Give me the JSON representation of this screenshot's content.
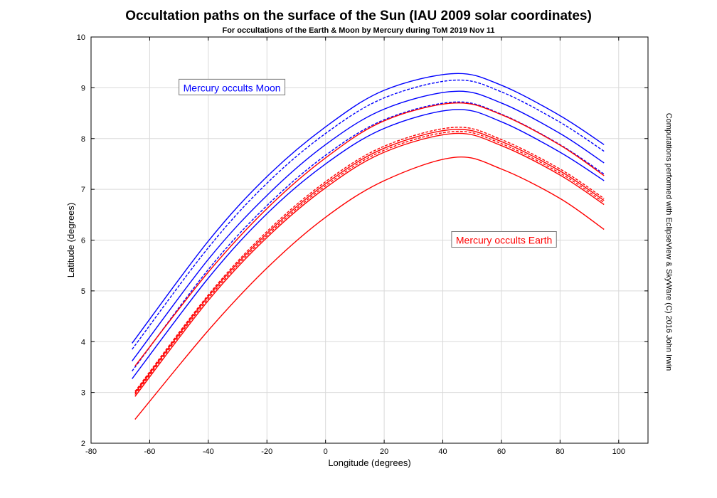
{
  "chart_data": {
    "type": "line",
    "title": "Occultation paths on the surface of the Sun (IAU 2009 solar coordinates)",
    "subtitle": "For occultations of the Earth & Moon by Mercury during ToM 2019 Nov 11",
    "xlabel": "Longitude (degrees)",
    "ylabel": "Latitude (degrees)",
    "xlim": [
      -80,
      110
    ],
    "ylim": [
      2,
      10
    ],
    "xticks": [
      -80,
      -60,
      -40,
      -20,
      0,
      20,
      40,
      60,
      80,
      100
    ],
    "yticks": [
      2,
      3,
      4,
      5,
      6,
      7,
      8,
      9,
      10
    ],
    "grid": true,
    "annotations": [
      {
        "text": "Mercury occults Moon",
        "x": -50,
        "y": 9.0,
        "color": "#0000ff"
      },
      {
        "text": "Mercury occults Earth",
        "x": 43,
        "y": 6.0,
        "color": "#ff0000"
      }
    ],
    "side_note": "Computations performed with EclipseView & SkyWare (C) 2016 John Irwin",
    "series": [
      {
        "group": "moon",
        "color": "#0000ff",
        "dash": false,
        "x": [
          -66,
          -40,
          -20,
          0,
          20,
          44,
          60,
          80,
          95
        ],
        "y": [
          3.97,
          5.98,
          7.25,
          8.23,
          8.95,
          9.28,
          9.05,
          8.45,
          7.88
        ]
      },
      {
        "group": "moon",
        "color": "#0000ff",
        "dash": true,
        "x": [
          -66,
          -40,
          -20,
          0,
          20,
          44,
          60,
          80,
          95
        ],
        "y": [
          3.85,
          5.85,
          7.12,
          8.1,
          8.8,
          9.15,
          8.92,
          8.32,
          7.75
        ]
      },
      {
        "group": "moon",
        "color": "#0000ff",
        "dash": false,
        "x": [
          -66,
          -40,
          -20,
          0,
          20,
          44,
          60,
          80,
          95
        ],
        "y": [
          3.62,
          5.62,
          6.88,
          7.88,
          8.58,
          8.93,
          8.7,
          8.1,
          7.52
        ]
      },
      {
        "group": "moon",
        "color": "#0000ff",
        "dash": true,
        "x": [
          -66,
          -40,
          -20,
          0,
          20,
          44,
          60,
          80,
          95
        ],
        "y": [
          3.42,
          5.42,
          6.68,
          7.67,
          8.37,
          8.72,
          8.48,
          7.88,
          7.3
        ]
      },
      {
        "group": "moon",
        "color": "#0000ff",
        "dash": false,
        "x": [
          -66,
          -40,
          -20,
          0,
          20,
          44,
          60,
          80,
          95
        ],
        "y": [
          3.27,
          5.25,
          6.52,
          7.5,
          8.2,
          8.57,
          8.33,
          7.73,
          7.17
        ]
      },
      {
        "group": "earth",
        "color": "#ff0000",
        "dash": false,
        "x": [
          -65,
          -40,
          -20,
          0,
          20,
          44,
          60,
          80,
          95
        ],
        "y": [
          3.52,
          5.37,
          6.62,
          7.62,
          8.35,
          8.7,
          8.47,
          7.87,
          7.27
        ]
      },
      {
        "group": "earth",
        "color": "#ff0000",
        "dash": true,
        "x": [
          -65,
          -40,
          -20,
          0,
          20,
          44,
          60,
          80,
          95
        ],
        "y": [
          3.02,
          4.92,
          6.17,
          7.15,
          7.85,
          8.22,
          7.98,
          7.4,
          6.82
        ]
      },
      {
        "group": "earth",
        "color": "#ff0000",
        "dash": false,
        "x": [
          -65,
          -40,
          -20,
          0,
          20,
          44,
          60,
          80,
          95
        ],
        "y": [
          2.99,
          4.89,
          6.13,
          7.11,
          7.81,
          8.18,
          7.94,
          7.36,
          6.78
        ]
      },
      {
        "group": "earth",
        "color": "#ff0000",
        "dash": true,
        "x": [
          -65,
          -40,
          -20,
          0,
          20,
          44,
          60,
          80,
          95
        ],
        "y": [
          2.96,
          4.85,
          6.09,
          7.07,
          7.77,
          8.14,
          7.9,
          7.32,
          6.74
        ]
      },
      {
        "group": "earth",
        "color": "#ff0000",
        "dash": false,
        "x": [
          -65,
          -40,
          -20,
          0,
          20,
          44,
          60,
          80,
          95
        ],
        "y": [
          2.92,
          4.81,
          6.05,
          7.03,
          7.73,
          8.1,
          7.86,
          7.28,
          6.7
        ]
      },
      {
        "group": "earth",
        "color": "#ff0000",
        "dash": false,
        "x": [
          -65,
          -40,
          -20,
          0,
          20,
          44,
          60,
          80,
          95
        ],
        "y": [
          2.47,
          4.22,
          5.45,
          6.45,
          7.17,
          7.63,
          7.4,
          6.82,
          6.21
        ]
      }
    ]
  }
}
